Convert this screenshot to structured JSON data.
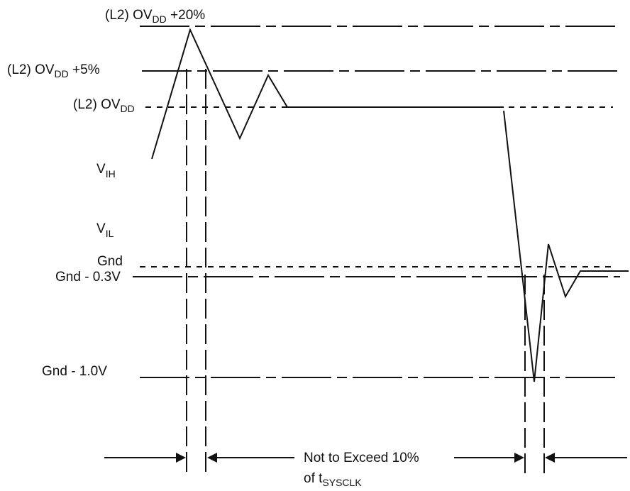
{
  "levels": {
    "ovdd_plus20": {
      "prefix": "(L2) OV",
      "sub": "DD",
      "suffix": " +20%"
    },
    "ovdd_plus5": {
      "prefix": "(L2) OV",
      "sub": "DD",
      "suffix": " +5%"
    },
    "ovdd": {
      "prefix": "(L2) OV",
      "sub": "DD"
    },
    "vih": {
      "main": "V",
      "sub": "IH"
    },
    "vil": {
      "main": "V",
      "sub": "IL"
    },
    "gnd": "Gnd",
    "gnd_minus_03": "Gnd - 0.3V",
    "gnd_minus_10": "Gnd - 1.0V"
  },
  "annotation": {
    "line1": "Not to Exceed 10%",
    "line2_prefix": "of t",
    "line2_sub": "SYSCLK"
  },
  "colors": {
    "ink": "#111111",
    "background": "#ffffff"
  }
}
